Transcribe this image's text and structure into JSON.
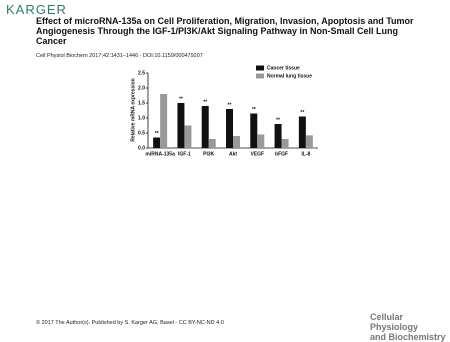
{
  "header": {
    "brand": "KARGER",
    "title": "Effect of microRNA-135a on Cell Proliferation, Migration, Invasion, Apoptosis and Tumor Angiogenesis Through the IGF-1/PI3K/Akt Signaling Pathway in Non-Small Cell Lung Cancer",
    "citation": "Cell Physiol Biochem 2017;42:1431–1446 · DOI:10.1159/000479207"
  },
  "footer": {
    "copyright": "© 2017 The Author(s). Published by S. Karger AG, Basel - CC BY-NC-ND 4.0",
    "journal_line1": "Cellular Physiology",
    "journal_line2": "and Biochemistry"
  },
  "chart_data": {
    "type": "bar",
    "y_label": "Relative mRNA expression",
    "categories": [
      "miRNA-135a",
      "IGF-1",
      "PI3K",
      "Akt",
      "VEGF",
      "bFGF",
      "IL-8"
    ],
    "series": [
      {
        "name": "Cancer tissue",
        "color": "#111111",
        "values": [
          0.35,
          1.5,
          1.4,
          1.3,
          1.15,
          0.8,
          1.05
        ]
      },
      {
        "name": "Normal lung tissue",
        "color": "#999999",
        "values": [
          1.8,
          0.75,
          0.3,
          0.4,
          0.45,
          0.3,
          0.42
        ]
      }
    ],
    "annotations": [
      "**",
      "**",
      "**",
      "**",
      "**",
      "**",
      "**"
    ],
    "ylim": [
      0,
      2.5
    ],
    "yticks": [
      {
        "value": 0,
        "label": "0.0"
      },
      {
        "value": 0.5,
        "label": "0.5"
      },
      {
        "value": 1,
        "label": "1.0"
      },
      {
        "value": 1.5,
        "label": "1.5"
      },
      {
        "value": 2,
        "label": "2.0"
      },
      {
        "value": 2.5,
        "label": "2.5"
      }
    ],
    "legend": "top-right"
  }
}
